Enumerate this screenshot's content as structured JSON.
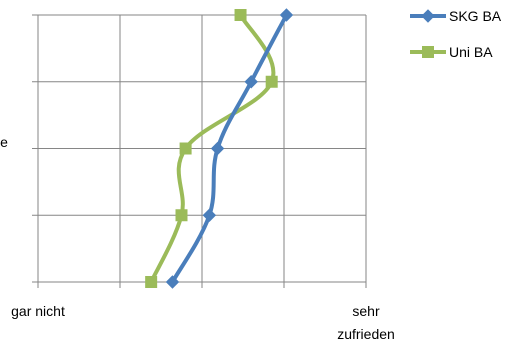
{
  "chart_data": {
    "type": "line",
    "x_axis": {
      "range": [
        0,
        4
      ],
      "tick_labels": [
        {
          "value": 0,
          "lines": [
            "gar nicht"
          ]
        },
        {
          "value": 4,
          "lines": [
            "sehr",
            "zufrieden"
          ]
        }
      ],
      "gridlines": [
        0,
        1,
        2,
        3,
        4
      ]
    },
    "y_axis": {
      "categories": 5,
      "tick_labels": [],
      "cut_off_label": "e"
    },
    "grid": true,
    "legend": {
      "placement": "top-right"
    },
    "series": [
      {
        "name": "SKG BA",
        "color": "#4a7ebb",
        "marker": "diamond",
        "points": [
          {
            "row": 1,
            "x": 3.03
          },
          {
            "row": 2,
            "x": 2.6
          },
          {
            "row": 3,
            "x": 2.19
          },
          {
            "row": 4,
            "x": 2.09
          },
          {
            "row": 5,
            "x": 1.64
          }
        ]
      },
      {
        "name": "Uni BA",
        "color": "#9bbb59",
        "marker": "square",
        "points": [
          {
            "row": 1,
            "x": 2.47
          },
          {
            "row": 2,
            "x": 2.85
          },
          {
            "row": 3,
            "x": 1.8
          },
          {
            "row": 4,
            "x": 1.75
          },
          {
            "row": 5,
            "x": 1.38
          }
        ]
      }
    ]
  }
}
